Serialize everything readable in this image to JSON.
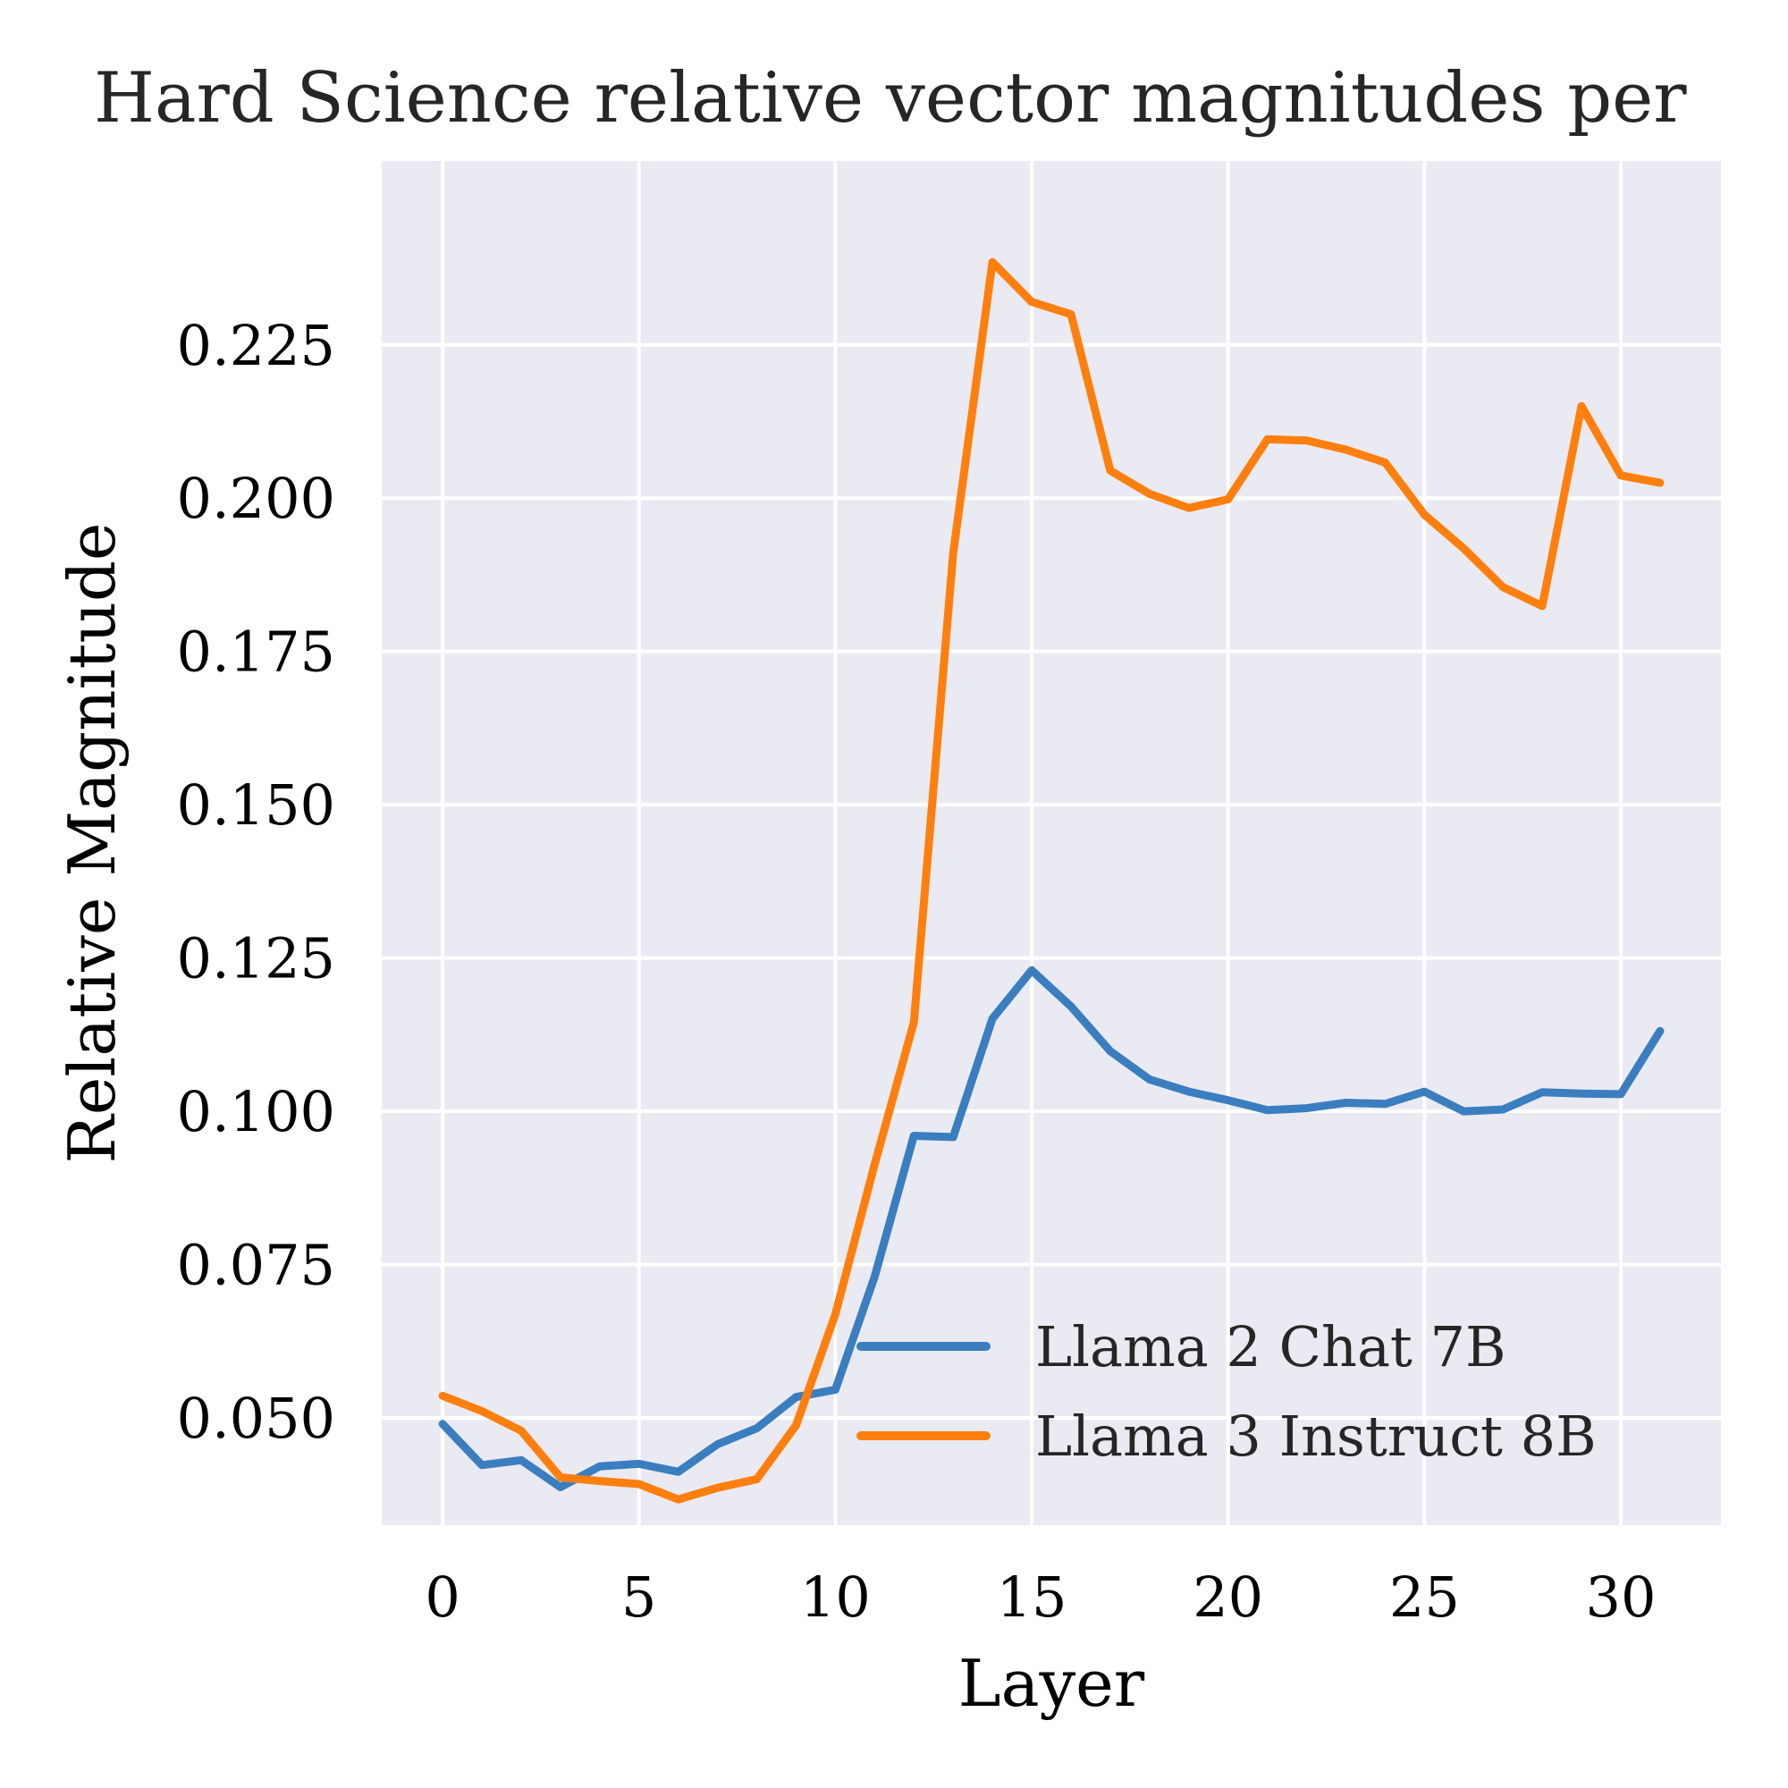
{
  "chart_data": {
    "type": "line",
    "title": "Hard Science relative vector magnitudes per",
    "xlabel": "Layer",
    "ylabel": "Relative Magnitude",
    "xlim": [
      -1.55,
      32.55
    ],
    "ylim": [
      0.0325,
      0.255
    ],
    "xticks": [
      0,
      5,
      10,
      15,
      20,
      25,
      30
    ],
    "xtick_labels": [
      "0",
      "5",
      "10",
      "15",
      "20",
      "25",
      "30"
    ],
    "yticks": [
      0.05,
      0.075,
      0.1,
      0.125,
      0.15,
      0.175,
      0.2,
      0.225
    ],
    "ytick_labels": [
      "0.050",
      "0.075",
      "0.100",
      "0.125",
      "0.150",
      "0.175",
      "0.200",
      "0.225"
    ],
    "grid": true,
    "legend_position": "lower-right",
    "x": [
      0,
      1,
      2,
      3,
      4,
      5,
      6,
      7,
      8,
      9,
      10,
      11,
      12,
      13,
      14,
      15,
      16,
      17,
      18,
      19,
      20,
      21,
      22,
      23,
      24,
      25,
      26,
      27,
      28,
      29,
      30,
      31
    ],
    "series": [
      {
        "name": "Llama 2 Chat 7B",
        "color": "#3a7ebf",
        "values": [
          0.049,
          0.0423,
          0.0431,
          0.0387,
          0.0421,
          0.0425,
          0.0412,
          0.0457,
          0.0483,
          0.0534,
          0.0546,
          0.073,
          0.096,
          0.0958,
          0.1151,
          0.123,
          0.1171,
          0.1098,
          0.1052,
          0.1032,
          0.1018,
          0.1002,
          0.1005,
          0.1014,
          0.1012,
          0.1032,
          0.1,
          0.1003,
          0.1031,
          0.1029,
          0.1028,
          0.1131
        ]
      },
      {
        "name": "Llama 3 Instruct 8B",
        "color": "#ff7f0e",
        "values": [
          0.0536,
          0.0511,
          0.0479,
          0.0403,
          0.0397,
          0.0392,
          0.0367,
          0.0386,
          0.04,
          0.0488,
          0.0669,
          0.0913,
          0.1145,
          0.191,
          0.2385,
          0.232,
          0.23,
          0.2045,
          0.2007,
          0.1984,
          0.1998,
          0.2096,
          0.2094,
          0.2079,
          0.2058,
          0.1973,
          0.1918,
          0.1855,
          0.1824,
          0.215,
          0.2037,
          0.2025
        ]
      }
    ]
  }
}
